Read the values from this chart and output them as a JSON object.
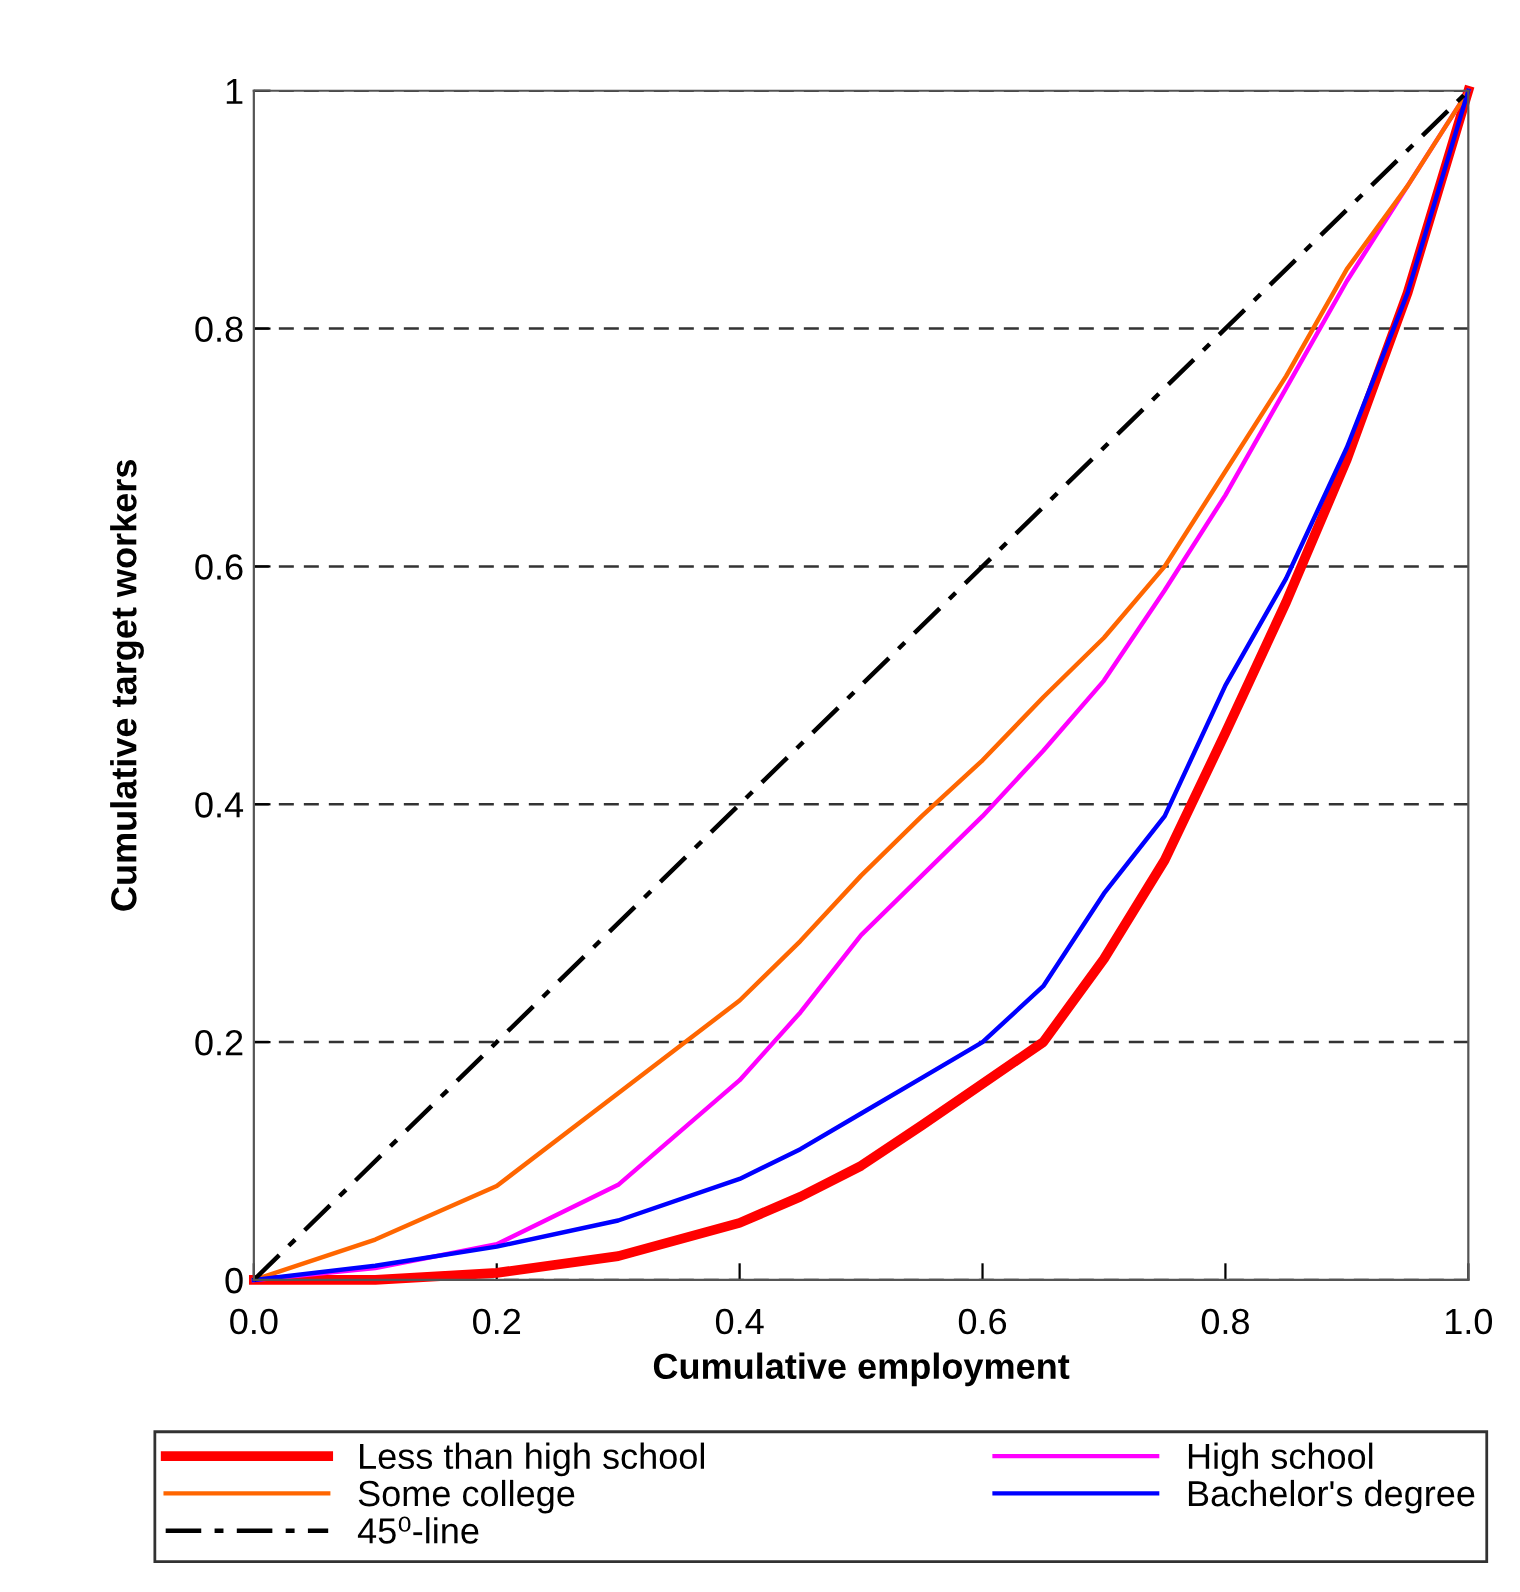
{
  "chart_data": {
    "type": "line",
    "xlabel": "Cumulative employment",
    "ylabel": "Cumulative target workers",
    "x": [
      0,
      0.1,
      0.2,
      0.3,
      0.4,
      0.45,
      0.5,
      0.55,
      0.6,
      0.65,
      0.7,
      0.75,
      0.8,
      0.85,
      0.9,
      0.95,
      1.0
    ],
    "series": [
      {
        "name": "Less than high school",
        "color": "#ff0000",
        "values": [
          0,
          0.0,
          0.006,
          0.02,
          0.048,
          0.07,
          0.096,
          0.13,
          0.165,
          0.2,
          0.27,
          0.353,
          0.46,
          0.57,
          0.69,
          0.83,
          1
        ]
      },
      {
        "name": "High school",
        "color": "#ff00ff",
        "values": [
          0,
          0.01,
          0.03,
          0.08,
          0.168,
          0.225,
          0.29,
          0.34,
          0.39,
          0.445,
          0.504,
          0.58,
          0.66,
          0.75,
          0.84,
          0.92,
          1
        ]
      },
      {
        "name": "Some college",
        "color": "#ff6600",
        "values": [
          0,
          0.034,
          0.079,
          0.157,
          0.235,
          0.285,
          0.34,
          0.39,
          0.437,
          0.49,
          0.54,
          0.6,
          0.68,
          0.76,
          0.85,
          0.92,
          1
        ]
      },
      {
        "name": "Bachelor's degree",
        "color": "#0000ff",
        "values": [
          0,
          0.012,
          0.028,
          0.05,
          0.085,
          0.11,
          0.14,
          0.17,
          0.2,
          0.247,
          0.325,
          0.39,
          0.5,
          0.59,
          0.7,
          0.83,
          1
        ]
      },
      {
        "name": "45⁰-line",
        "color": "#000000",
        "line_style": "dashed",
        "x": [
          0,
          1
        ],
        "values": [
          0,
          1
        ]
      }
    ],
    "xlim": [
      0,
      1
    ],
    "ylim": [
      0,
      1
    ],
    "xticks": [
      {
        "value": 0,
        "label": "0.0"
      },
      0.2,
      0.4,
      0.6,
      0.8,
      {
        "value": 1,
        "label": "1.0"
      }
    ],
    "yticks": [
      0,
      0.2,
      0.4,
      0.6,
      0.8,
      1
    ],
    "grid": "y",
    "legend": "bottom",
    "marker": "none",
    "line_style": "solid"
  }
}
